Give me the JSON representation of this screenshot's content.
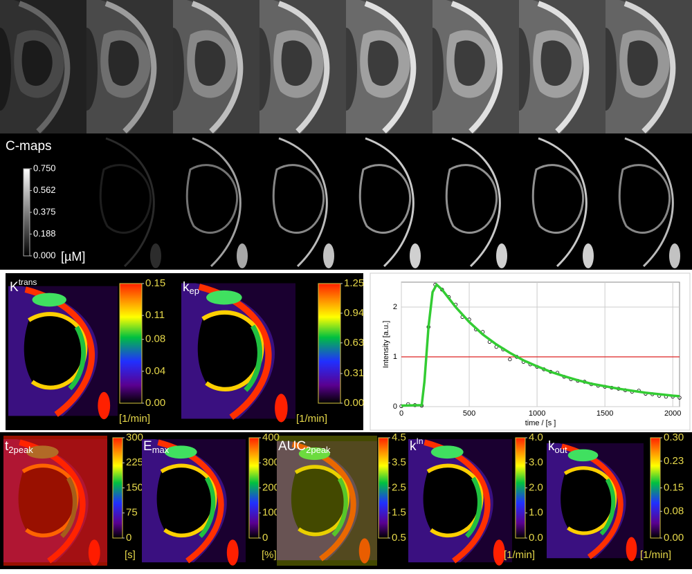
{
  "c_maps": {
    "label": "C-maps",
    "ticks": [
      {
        "value": 0.75,
        "label": "0.750"
      },
      0.562,
      0.375,
      0.188,
      {
        "value": 0,
        "label": "0.000"
      }
    ],
    "unit": "[µM]"
  },
  "param_maps": [
    {
      "symbol": "K",
      "sup": "trans",
      "ticks": [
        0.15,
        0.11,
        0.08,
        0.04,
        {
          "value": 0,
          "label": "0.00"
        }
      ],
      "unit": "[1/min]"
    },
    {
      "symbol": "k",
      "sub": "ep",
      "ticks": [
        1.25,
        0.94,
        0.63,
        0.31,
        {
          "value": 0,
          "label": "0.00"
        }
      ],
      "unit": "[1/min]"
    },
    {
      "symbol": "t",
      "sub": "2peak",
      "ticks": [
        300,
        225,
        150,
        75,
        0
      ],
      "unit": "[s]"
    },
    {
      "symbol": "E",
      "sub": "max",
      "ticks": [
        400,
        300,
        200,
        100,
        0
      ],
      "unit": "[%]"
    },
    {
      "symbol": "AUC",
      "sub": "2peak",
      "ticks": [
        4.5,
        3.5,
        2.5,
        1.5,
        0.5
      ]
    },
    {
      "symbol": "k",
      "sup": "In",
      "ticks": [
        {
          "value": 4,
          "label": "4.0"
        },
        {
          "value": 3,
          "label": "3.0"
        },
        {
          "value": 2,
          "label": "2.0"
        },
        {
          "value": 1,
          "label": "1.0"
        },
        {
          "value": 0,
          "label": "0.0"
        }
      ],
      "unit": "[1/min]"
    },
    {
      "symbol": "k",
      "sub": "out",
      "ticks": [
        {
          "value": 0.3,
          "label": "0.30"
        },
        0.23,
        0.15,
        0.08,
        {
          "value": 0,
          "label": "0.00"
        }
      ],
      "unit": "[1/min]"
    }
  ],
  "chart_data": {
    "type": "line",
    "x_label": "time / [s ]",
    "y_label": "Intensity [a.u.]",
    "xlim": [
      0,
      2050
    ],
    "ylim": [
      0,
      2.5
    ],
    "xticks": [
      0,
      500,
      1000,
      1500,
      2000
    ],
    "yticks": [
      0,
      1,
      2
    ],
    "grid": true,
    "hline": {
      "value": 1,
      "color": "#dd2222"
    },
    "series": [
      {
        "style": "points",
        "color": "#000000",
        "x": [
          0,
          50,
          100,
          150,
          200,
          250,
          300,
          350,
          400,
          450,
          500,
          550,
          600,
          650,
          700,
          750,
          800,
          850,
          900,
          950,
          1000,
          1050,
          1100,
          1150,
          1200,
          1250,
          1300,
          1350,
          1400,
          1450,
          1500,
          1550,
          1600,
          1650,
          1700,
          1750,
          1800,
          1850,
          1900,
          1950,
          2000,
          2050
        ],
        "values": [
          0.01,
          0.05,
          0.03,
          0.02,
          1.6,
          2.45,
          2.35,
          2.2,
          2.05,
          1.8,
          1.75,
          1.55,
          1.5,
          1.3,
          1.2,
          1.15,
          0.95,
          1.0,
          0.9,
          0.85,
          0.8,
          0.75,
          0.7,
          0.68,
          0.6,
          0.55,
          0.52,
          0.5,
          0.45,
          0.42,
          0.4,
          0.38,
          0.36,
          0.33,
          0.3,
          0.32,
          0.26,
          0.25,
          0.22,
          0.2,
          0.2,
          0.18
        ]
      },
      {
        "style": "line",
        "color": "#33cc33",
        "x": [
          0,
          150,
          170,
          200,
          230,
          260,
          300,
          400,
          500,
          600,
          700,
          800,
          900,
          1000,
          1100,
          1200,
          1300,
          1400,
          1500,
          1600,
          1700,
          1800,
          1900,
          2000,
          2050
        ],
        "values": [
          0.02,
          0.03,
          0.5,
          1.6,
          2.3,
          2.45,
          2.35,
          2.0,
          1.7,
          1.45,
          1.25,
          1.08,
          0.93,
          0.81,
          0.7,
          0.61,
          0.53,
          0.46,
          0.41,
          0.36,
          0.32,
          0.28,
          0.25,
          0.22,
          0.21
        ]
      }
    ]
  }
}
